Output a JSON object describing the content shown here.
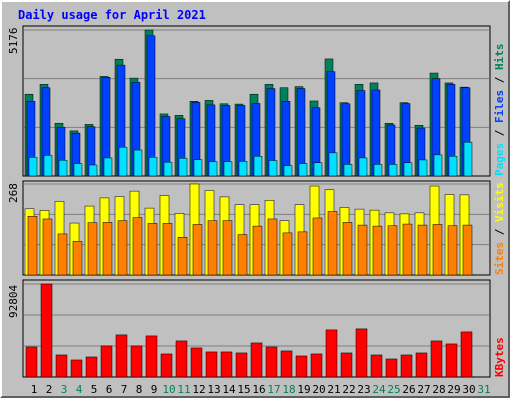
{
  "chart_data": [
    {
      "type": "bar",
      "title": "Daily usage for April 2021",
      "ylabel_top": "5176",
      "legend": [
        "Pages",
        "Files",
        "Hits"
      ],
      "legend_colors": {
        "hits": "#00805c",
        "files": "#0040ff",
        "pages": "#00e0ff"
      },
      "categories": [
        "1",
        "2",
        "3",
        "4",
        "5",
        "6",
        "7",
        "8",
        "9",
        "10",
        "11",
        "12",
        "13",
        "14",
        "15",
        "16",
        "17",
        "18",
        "19",
        "20",
        "21",
        "22",
        "23",
        "24",
        "25",
        "26",
        "27",
        "28",
        "29",
        "30",
        "31"
      ],
      "ylim": [
        0,
        5176
      ],
      "series": [
        {
          "name": "Hits",
          "values": [
            2900,
            3250,
            1870,
            1600,
            1830,
            3530,
            4140,
            3470,
            5176,
            2200,
            2150,
            2650,
            2680,
            2560,
            2550,
            2900,
            3250,
            3130,
            3170,
            2660,
            4150,
            2600,
            3250,
            3300,
            1870,
            2600,
            1800,
            3650,
            3300,
            3150,
            0
          ]
        },
        {
          "name": "Files",
          "values": [
            2650,
            3130,
            1730,
            1520,
            1750,
            3500,
            3930,
            3320,
            4970,
            2110,
            2030,
            2610,
            2520,
            2500,
            2500,
            2570,
            3100,
            2650,
            3100,
            2420,
            3700,
            2560,
            3030,
            3050,
            1810,
            2570,
            1700,
            3450,
            3250,
            3130,
            0
          ]
        },
        {
          "name": "Pages",
          "values": [
            660,
            730,
            560,
            440,
            390,
            640,
            1020,
            920,
            660,
            490,
            630,
            580,
            510,
            510,
            520,
            700,
            550,
            370,
            440,
            470,
            820,
            410,
            640,
            410,
            410,
            470,
            570,
            750,
            700,
            1200,
            0
          ]
        }
      ]
    },
    {
      "type": "bar",
      "ylabel_top": "268",
      "legend": [
        "Sites",
        "Visits"
      ],
      "legend_colors": {
        "visits": "#ffff00",
        "sites": "#ff8000"
      },
      "categories": [
        "1",
        "2",
        "3",
        "4",
        "5",
        "6",
        "7",
        "8",
        "9",
        "10",
        "11",
        "12",
        "13",
        "14",
        "15",
        "16",
        "17",
        "18",
        "19",
        "20",
        "21",
        "22",
        "23",
        "24",
        "25",
        "26",
        "27",
        "28",
        "29",
        "30",
        "31"
      ],
      "ylim": [
        0,
        268
      ],
      "series": [
        {
          "name": "Visits",
          "values": [
            195,
            190,
            217,
            153,
            203,
            227,
            231,
            247,
            197,
            234,
            181,
            268,
            249,
            230,
            207,
            207,
            220,
            160,
            207,
            262,
            251,
            199,
            194,
            191,
            183,
            180,
            183,
            262,
            237,
            236,
            0
          ]
        },
        {
          "name": "Sites",
          "values": [
            173,
            165,
            121,
            99,
            154,
            155,
            160,
            169,
            152,
            152,
            111,
            149,
            160,
            160,
            119,
            144,
            165,
            124,
            127,
            168,
            187,
            155,
            147,
            144,
            145,
            150,
            147,
            149,
            145,
            147,
            0
          ]
        }
      ]
    },
    {
      "type": "bar",
      "ylabel_top": "92804",
      "legend": [
        "KBytes"
      ],
      "legend_colors": {
        "kbytes": "#ff0000"
      },
      "categories": [
        "1",
        "2",
        "3",
        "4",
        "5",
        "6",
        "7",
        "8",
        "9",
        "10",
        "11",
        "12",
        "13",
        "14",
        "15",
        "16",
        "17",
        "18",
        "19",
        "20",
        "21",
        "22",
        "23",
        "24",
        "25",
        "26",
        "27",
        "28",
        "29",
        "30",
        "31"
      ],
      "ylim": [
        0,
        92804
      ],
      "series": [
        {
          "name": "KBytes",
          "values": [
            30000,
            92804,
            22000,
            17000,
            20000,
            31000,
            42000,
            31000,
            41000,
            23000,
            36000,
            29000,
            25000,
            25000,
            24000,
            34000,
            30000,
            26000,
            21000,
            23000,
            47000,
            24000,
            48000,
            22000,
            18000,
            22000,
            24000,
            36000,
            33000,
            45000,
            0
          ]
        }
      ]
    }
  ],
  "day_label_colors": [
    "#000000",
    "#000000",
    "#00805c",
    "#00805c",
    "#000000",
    "#000000",
    "#000000",
    "#000000",
    "#000000",
    "#00805c",
    "#00805c",
    "#000000",
    "#000000",
    "#000000",
    "#000000",
    "#000000",
    "#00805c",
    "#00805c",
    "#000000",
    "#000000",
    "#000000",
    "#000000",
    "#000000",
    "#00805c",
    "#00805c",
    "#000000",
    "#000000",
    "#000000",
    "#000000",
    "#000000",
    "#00805c"
  ]
}
